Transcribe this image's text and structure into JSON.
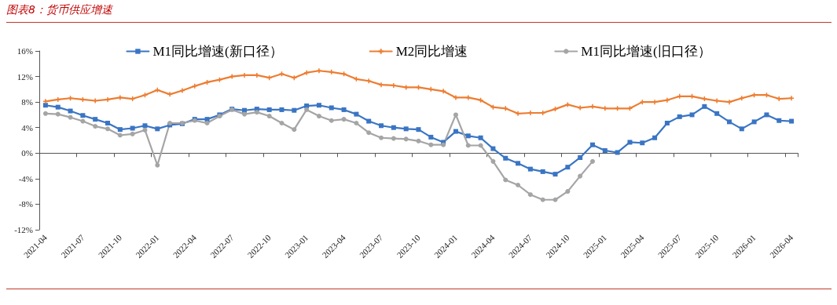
{
  "chart_data": {
    "type": "line",
    "title": "图表8：货币供应增速",
    "categories": [
      "2021-04",
      null,
      null,
      "2021-07",
      null,
      null,
      "2021-10",
      null,
      null,
      "2022-01",
      null,
      null,
      "2022-04",
      null,
      null,
      "2022-07",
      null,
      null,
      "2022-10",
      null,
      null,
      "2023-01",
      null,
      null,
      "2023-04",
      null,
      null,
      "2023-07",
      null,
      null,
      "2023-10",
      null,
      null,
      "2024-01",
      null,
      null,
      "2024-04",
      null,
      null,
      "2024-07",
      null,
      null,
      "2024-10",
      null,
      null,
      "2025-01",
      null,
      null,
      "2025-04",
      null,
      null,
      "2025-07",
      null,
      null,
      "2025-10",
      null,
      null,
      "2026-01",
      null,
      null,
      "2026-04"
    ],
    "series": [
      {
        "name": "M1同比增速(新口径）",
        "color": "#3a75c4",
        "marker": "square",
        "values": [
          7.5,
          7.2,
          6.6,
          5.9,
          5.3,
          4.7,
          3.7,
          3.9,
          4.3,
          3.8,
          4.4,
          4.6,
          5.3,
          5.3,
          6.0,
          6.9,
          6.7,
          6.9,
          6.8,
          6.8,
          6.7,
          7.4,
          7.5,
          7.1,
          6.8,
          6.1,
          5.0,
          4.3,
          4.0,
          3.8,
          3.7,
          2.5,
          1.7,
          3.4,
          2.7,
          2.4,
          0.7,
          -0.8,
          -1.6,
          -2.5,
          -2.9,
          -3.3,
          -2.2,
          -0.7,
          1.3,
          0.4,
          0.1,
          1.7,
          1.6,
          2.4,
          4.7,
          5.7,
          6.0,
          7.3,
          6.2,
          4.9,
          3.8,
          4.9,
          6.0,
          5.1,
          5.0
        ]
      },
      {
        "name": "M2同比增速",
        "color": "#ed7d31",
        "marker": "cross",
        "values": [
          8.1,
          8.4,
          8.6,
          8.4,
          8.2,
          8.4,
          8.7,
          8.5,
          9.1,
          9.9,
          9.2,
          9.8,
          10.5,
          11.1,
          11.5,
          12.0,
          12.2,
          12.2,
          11.8,
          12.4,
          11.8,
          12.6,
          12.9,
          12.7,
          12.4,
          11.6,
          11.3,
          10.7,
          10.6,
          10.3,
          10.3,
          10.0,
          9.7,
          8.7,
          8.7,
          8.3,
          7.2,
          7.0,
          6.2,
          6.3,
          6.3,
          6.9,
          7.6,
          7.1,
          7.3,
          7.0,
          7.0,
          7.0,
          8.0,
          8.0,
          8.3,
          8.9,
          8.9,
          8.5,
          8.2,
          8.0,
          8.6,
          9.1,
          9.1,
          8.5,
          8.6
        ]
      },
      {
        "name": "M1同比增速(旧口径）",
        "color": "#a5a5a5",
        "marker": "circle",
        "values": [
          6.2,
          6.1,
          5.6,
          5.0,
          4.2,
          3.8,
          2.8,
          3.0,
          3.6,
          -1.9,
          4.7,
          4.7,
          5.1,
          4.7,
          5.8,
          6.8,
          6.1,
          6.4,
          5.8,
          4.7,
          3.7,
          6.8,
          5.8,
          5.1,
          5.3,
          4.7,
          3.2,
          2.4,
          2.3,
          2.2,
          1.9,
          1.3,
          1.3,
          6.0,
          1.2,
          1.2,
          -1.3,
          -4.2,
          -5.0,
          -6.5,
          -7.3,
          -7.3,
          -6.0,
          -3.6,
          -1.3,
          null,
          null,
          null,
          null,
          null,
          null,
          null,
          null,
          null,
          null,
          null,
          null,
          null,
          null,
          null,
          null
        ]
      }
    ],
    "ylim": [
      -12,
      16
    ],
    "yticks": [
      {
        "value": -12,
        "label": "-12%"
      },
      {
        "value": -8,
        "label": "-8%"
      },
      {
        "value": -4,
        "label": "-4%"
      },
      {
        "value": 0,
        "label": "0%"
      },
      {
        "value": 4,
        "label": "4%"
      },
      {
        "value": 8,
        "label": "8%"
      },
      {
        "value": 12,
        "label": "12%"
      },
      {
        "value": 16,
        "label": "16%"
      }
    ],
    "legend": "top",
    "line_style": "solid"
  }
}
